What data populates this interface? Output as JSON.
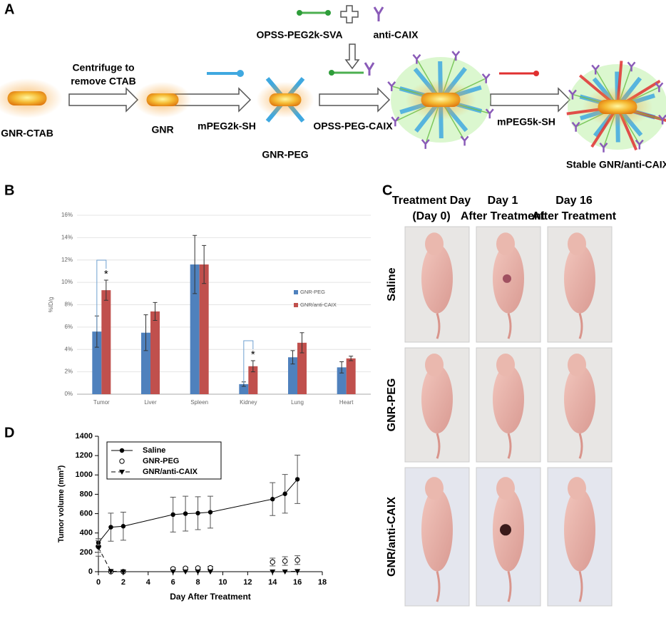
{
  "diagram": {
    "label": "A",
    "reagent_1": "OPSS-PEG2k-SVA",
    "reagent_2": "anti-CAIX",
    "step_1": [
      "Centrifuge to",
      "remove CTAB"
    ],
    "start": "GNR-CTAB",
    "gnr": "GNR",
    "step_2": "mPEG2k-SH",
    "gnr_peg": "GNR-PEG",
    "step_3": "OPSS-PEG-CAIX",
    "step_4": "mPEG5k-SH",
    "final": "Stable GNR/anti-CAIX"
  },
  "photos": {
    "label": "C",
    "columns": [
      "Treatment Day (Day 0)",
      "Day 1 After Treatment",
      "Day 16 After Treatment"
    ],
    "rows": [
      "Saline",
      "GNR-PEG",
      "GNR/anti-CAIX"
    ]
  },
  "chart_data": [
    {
      "type": "bar",
      "panel": "B",
      "ylabel": "%ID/g",
      "categories": [
        "Tumor",
        "Liver",
        "Spleen",
        "Kidney",
        "Lung",
        "Heart"
      ],
      "series": [
        {
          "name": "GNR-PEG",
          "color": "#4f81bd",
          "values": [
            5.6,
            5.5,
            11.6,
            0.9,
            3.3,
            2.4
          ],
          "errors": [
            1.4,
            1.6,
            2.6,
            0.2,
            0.6,
            0.5
          ]
        },
        {
          "name": "GNR/anti-CAIX",
          "color": "#c0504d",
          "values": [
            9.3,
            7.4,
            11.6,
            2.5,
            4.6,
            3.2
          ],
          "errors": [
            0.9,
            0.8,
            1.7,
            0.5,
            0.9,
            0.2
          ]
        }
      ],
      "annotations": [
        "*",
        "*"
      ],
      "ylim": [
        0,
        16
      ],
      "yticks": [
        {
          "value": 0,
          "label": "0%"
        },
        {
          "value": 2,
          "label": "2%"
        },
        {
          "value": 4,
          "label": "4%"
        },
        {
          "value": 6,
          "label": "6%"
        },
        {
          "value": 8,
          "label": "8%"
        },
        {
          "value": 10,
          "label": "10%"
        },
        {
          "value": 12,
          "label": "12%"
        },
        {
          "value": 14,
          "label": "14%"
        },
        {
          "value": 16,
          "label": "16%"
        }
      ],
      "grid": true,
      "legend": "right"
    },
    {
      "type": "line",
      "panel": "D",
      "xlabel": "Day After Treatment",
      "ylabel": "Tumor volume (mm³)",
      "x": [
        0,
        1,
        2,
        6,
        7,
        8,
        9,
        14,
        15,
        16
      ],
      "series": [
        {
          "name": "Saline",
          "color": "#000000",
          "marker": "filled-circle",
          "linestyle": "solid",
          "values": [
            300,
            460,
            470,
            590,
            600,
            605,
            615,
            750,
            805,
            955
          ],
          "errors": [
            40,
            145,
            145,
            180,
            180,
            170,
            165,
            170,
            200,
            250
          ]
        },
        {
          "name": "GNR-PEG",
          "color": "#000000",
          "marker": "open-circle",
          "linestyle": "none",
          "values": [
            260,
            0,
            0,
            30,
            35,
            38,
            40,
            100,
            110,
            120
          ],
          "errors": [
            60,
            0,
            0,
            10,
            10,
            10,
            15,
            40,
            45,
            45
          ]
        },
        {
          "name": "GNR/anti-CAIX",
          "color": "#000000",
          "marker": "triangle-down",
          "linestyle": "dashed",
          "values": [
            250,
            5,
            0,
            0,
            0,
            0,
            0,
            0,
            0,
            5
          ],
          "errors": [
            90,
            0,
            0,
            0,
            0,
            0,
            0,
            0,
            0,
            0
          ]
        }
      ],
      "xlim": [
        0,
        18
      ],
      "xticks": [
        0,
        2,
        4,
        6,
        8,
        10,
        12,
        14,
        16,
        18
      ],
      "ylim": [
        0,
        1400
      ],
      "yticks": [
        0,
        200,
        400,
        600,
        800,
        1000,
        1200,
        1400
      ],
      "legend": "upper left"
    }
  ]
}
